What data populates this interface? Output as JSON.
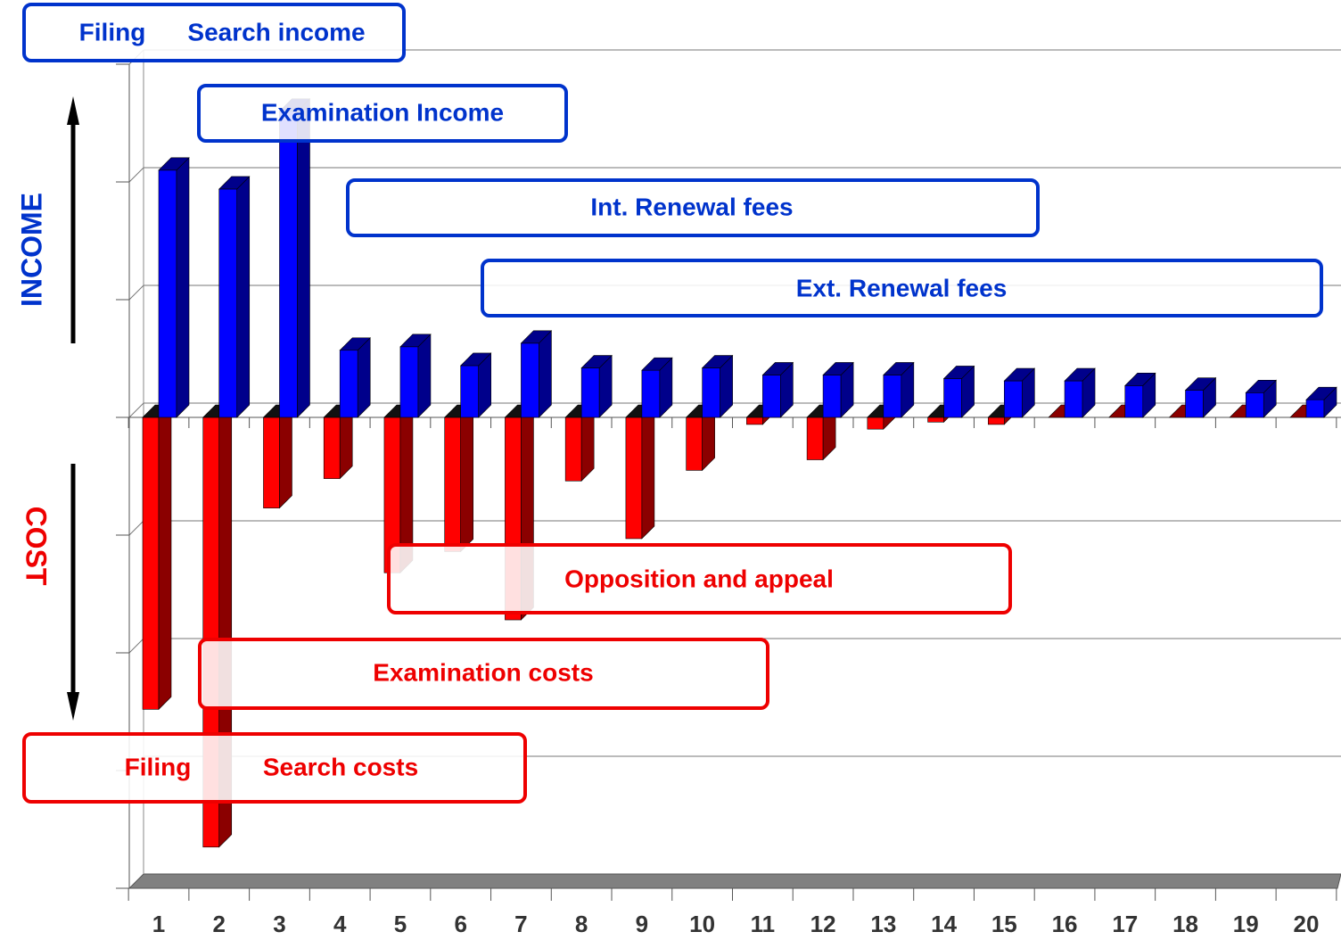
{
  "chart_data": {
    "type": "bar3d",
    "axis_labels": {
      "income": "INCOME",
      "cost": "COST"
    },
    "annotations": {
      "filing_search_income": [
        "Filing",
        "Search income"
      ],
      "examination_income": "Examination Income",
      "int_renewal": "Int. Renewal fees",
      "ext_renewal": "Ext. Renewal fees",
      "opposition": "Opposition and appeal",
      "examination_costs": "Examination costs",
      "filing_search_costs": [
        "Filing",
        "Search costs"
      ]
    },
    "categories": [
      "1",
      "2",
      "3",
      "4",
      "5",
      "6",
      "7",
      "8",
      "9",
      "10",
      "11",
      "12",
      "13",
      "14",
      "15",
      "16",
      "17",
      "18",
      "19",
      "20"
    ],
    "series": [
      {
        "color": "#ff0000",
        "side_color": "#8b0000",
        "values": [
          -2.48,
          -3.65,
          -0.77,
          -0.52,
          -1.32,
          -1.14,
          -1.72,
          -0.54,
          -1.03,
          -0.45,
          -0.06,
          -0.36,
          -0.1,
          -0.04,
          -0.06,
          0,
          0,
          0,
          0,
          0
        ]
      },
      {
        "color": "#0000ff",
        "side_color": "#00008b",
        "values": [
          2.1,
          1.94,
          2.6,
          0.57,
          0.6,
          0.44,
          0.63,
          0.42,
          0.4,
          0.42,
          0.36,
          0.36,
          0.36,
          0.33,
          0.31,
          0.31,
          0.27,
          0.23,
          0.21,
          0.15
        ]
      }
    ],
    "ylim": [
      -4,
      3
    ],
    "yticks": [
      -4,
      -3,
      -2,
      -1,
      0,
      1,
      2,
      3
    ],
    "grid": true
  }
}
